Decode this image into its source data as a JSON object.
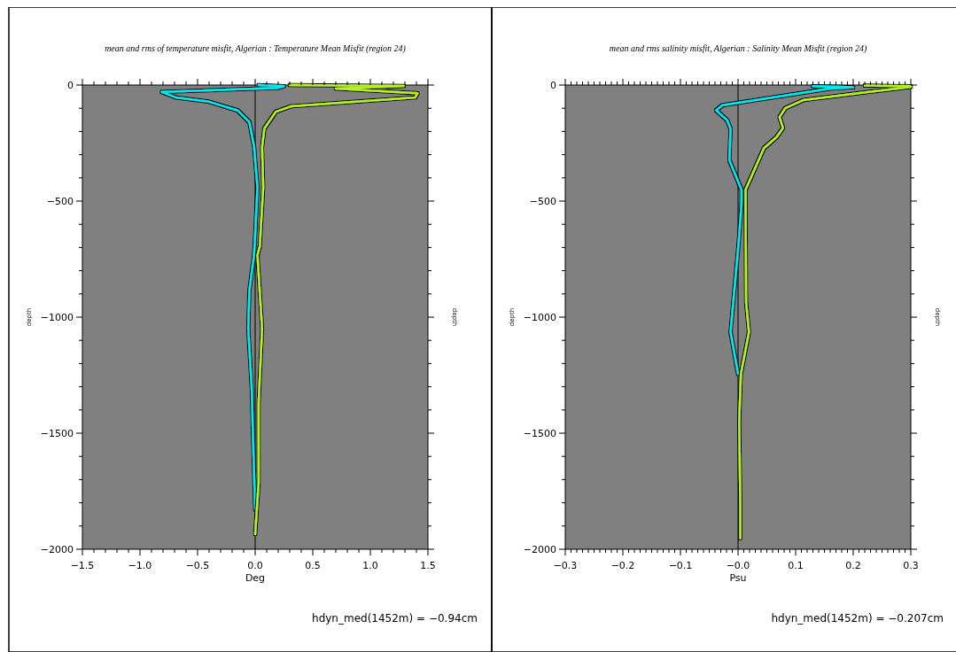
{
  "chart_data": [
    {
      "type": "line",
      "title": "mean and rms of temperature misfit, Algerian : Temperature Mean Misfit  (region 24)",
      "xlabel": "Deg",
      "ylabel": "depth",
      "y2label": "depth",
      "annotations": [
        "hdyn_med(1452m) = −0.94cm"
      ],
      "grid": false,
      "line_style": "solid",
      "xlim": [
        -1.5,
        1.5
      ],
      "ylim": [
        -2000,
        0
      ],
      "xticks": [
        {
          "value": -1.5,
          "label": "−1.5"
        },
        {
          "value": -1.4,
          "label": null
        },
        {
          "value": -1.3,
          "label": null
        },
        {
          "value": -1.2,
          "label": null
        },
        {
          "value": -1.1,
          "label": null
        },
        {
          "value": -1.0,
          "label": "−1.0"
        },
        {
          "value": -0.9,
          "label": null
        },
        {
          "value": -0.8,
          "label": null
        },
        {
          "value": -0.7,
          "label": null
        },
        {
          "value": -0.6,
          "label": null
        },
        {
          "value": -0.5,
          "label": "−0.5"
        },
        {
          "value": -0.4,
          "label": null
        },
        {
          "value": -0.3,
          "label": null
        },
        {
          "value": -0.2,
          "label": null
        },
        {
          "value": -0.1,
          "label": null
        },
        {
          "value": 0,
          "label": "0.0"
        },
        {
          "value": 0.1,
          "label": null
        },
        {
          "value": 0.2,
          "label": null
        },
        {
          "value": 0.3,
          "label": null
        },
        {
          "value": 0.4,
          "label": null
        },
        {
          "value": 0.5,
          "label": "0.5"
        },
        {
          "value": 0.6,
          "label": null
        },
        {
          "value": 0.7,
          "label": null
        },
        {
          "value": 0.8,
          "label": null
        },
        {
          "value": 0.9,
          "label": null
        },
        {
          "value": 1.0,
          "label": "1.0"
        },
        {
          "value": 1.1,
          "label": null
        },
        {
          "value": 1.2,
          "label": null
        },
        {
          "value": 1.3,
          "label": null
        },
        {
          "value": 1.4,
          "label": null
        },
        {
          "value": 1.5,
          "label": "1.5"
        }
      ],
      "yticks": [
        {
          "value": -2000,
          "label": "−2000"
        },
        {
          "value": -1900,
          "label": null
        },
        {
          "value": -1800,
          "label": null
        },
        {
          "value": -1700,
          "label": null
        },
        {
          "value": -1600,
          "label": null
        },
        {
          "value": -1500,
          "label": "−1500"
        },
        {
          "value": -1400,
          "label": null
        },
        {
          "value": -1300,
          "label": null
        },
        {
          "value": -1200,
          "label": null
        },
        {
          "value": -1100,
          "label": null
        },
        {
          "value": -1000,
          "label": "−1000"
        },
        {
          "value": -900,
          "label": null
        },
        {
          "value": -800,
          "label": null
        },
        {
          "value": -700,
          "label": null
        },
        {
          "value": -600,
          "label": null
        },
        {
          "value": -500,
          "label": "−500"
        },
        {
          "value": -400,
          "label": null
        },
        {
          "value": -300,
          "label": null
        },
        {
          "value": -200,
          "label": null
        },
        {
          "value": -100,
          "label": null
        },
        0
      ],
      "ref_lines": [
        {
          "axis": "x",
          "value": 0,
          "color": "#000000"
        }
      ],
      "series": [
        {
          "color": "#00e8f0",
          "x": [
            0.03,
            0.25,
            0.2,
            -0.81,
            -0.69,
            -0.4,
            -0.15,
            -0.05,
            -0.01,
            0.02,
            0.0,
            -0.01,
            -0.05,
            -0.06,
            -0.03,
            -0.02,
            0.0
          ],
          "values": [
            0,
            -5,
            -12,
            -30,
            -53,
            -72,
            -110,
            -160,
            -263,
            -440,
            -645,
            -733,
            -885,
            -1050,
            -1305,
            -1496,
            -1828
          ]
        },
        {
          "color": "#b4f028",
          "x": [
            0.3,
            1.29,
            0.7,
            1.41,
            1.39,
            0.31,
            0.18,
            0.08,
            0.06,
            0.07,
            0.04,
            0.02,
            0.06,
            0.03,
            0.03,
            0.0
          ],
          "values": [
            0,
            -4,
            -15,
            -35,
            -53,
            -92,
            -115,
            -187,
            -267,
            -440,
            -695,
            -733,
            -1050,
            -1370,
            -1714,
            -1935
          ]
        }
      ]
    },
    {
      "type": "line",
      "title": "mean and rms salinity misfit, Algerian : Salinity Mean Misfit (region 24)",
      "xlabel": "Psu",
      "ylabel": "depth",
      "y2label": "depth",
      "annotations": [
        "hdyn_med(1452m) = −0.207cm"
      ],
      "grid": false,
      "line_style": "solid",
      "xlim": [
        -0.3,
        0.3
      ],
      "ylim": [
        -2000,
        0
      ],
      "xticks": [
        {
          "value": -0.3,
          "label": "−0.3"
        },
        {
          "value": -0.29,
          "label": null
        },
        {
          "value": -0.28,
          "label": null
        },
        {
          "value": -0.27,
          "label": null
        },
        {
          "value": -0.26,
          "label": null
        },
        {
          "value": -0.25,
          "label": null
        },
        {
          "value": -0.24,
          "label": null
        },
        {
          "value": -0.23,
          "label": null
        },
        {
          "value": -0.22,
          "label": null
        },
        {
          "value": -0.21,
          "label": null
        },
        {
          "value": -0.2,
          "label": "−0.2"
        },
        {
          "value": -0.19,
          "label": null
        },
        {
          "value": -0.18,
          "label": null
        },
        {
          "value": -0.17,
          "label": null
        },
        {
          "value": -0.16,
          "label": null
        },
        {
          "value": -0.15,
          "label": null
        },
        {
          "value": -0.14,
          "label": null
        },
        {
          "value": -0.13,
          "label": null
        },
        {
          "value": -0.12,
          "label": null
        },
        {
          "value": -0.11,
          "label": null
        },
        {
          "value": -0.1,
          "label": "−0.1"
        },
        {
          "value": -0.09,
          "label": null
        },
        {
          "value": -0.08,
          "label": null
        },
        {
          "value": -0.07,
          "label": null
        },
        {
          "value": -0.06,
          "label": null
        },
        {
          "value": -0.05,
          "label": null
        },
        {
          "value": -0.04,
          "label": null
        },
        {
          "value": -0.03,
          "label": null
        },
        {
          "value": -0.02,
          "label": null
        },
        {
          "value": -0.01,
          "label": null
        },
        {
          "value": 0,
          "label": "−0.0"
        },
        {
          "value": 0.01,
          "label": null
        },
        {
          "value": 0.02,
          "label": null
        },
        {
          "value": 0.03,
          "label": null
        },
        {
          "value": 0.04,
          "label": null
        },
        {
          "value": 0.05,
          "label": null
        },
        {
          "value": 0.06,
          "label": null
        },
        {
          "value": 0.07,
          "label": null
        },
        {
          "value": 0.08,
          "label": null
        },
        {
          "value": 0.09,
          "label": null
        },
        {
          "value": 0.1,
          "label": "0.1"
        },
        {
          "value": 0.11,
          "label": null
        },
        {
          "value": 0.12,
          "label": null
        },
        {
          "value": 0.13,
          "label": null
        },
        {
          "value": 0.14,
          "label": null
        },
        {
          "value": 0.15,
          "label": null
        },
        {
          "value": 0.16,
          "label": null
        },
        {
          "value": 0.17,
          "label": null
        },
        {
          "value": 0.18,
          "label": null
        },
        {
          "value": 0.19,
          "label": null
        },
        {
          "value": 0.2,
          "label": "0.2"
        },
        {
          "value": 0.21,
          "label": null
        },
        {
          "value": 0.22,
          "label": null
        },
        {
          "value": 0.23,
          "label": null
        },
        {
          "value": 0.24,
          "label": null
        },
        {
          "value": 0.25,
          "label": null
        },
        {
          "value": 0.26,
          "label": null
        },
        {
          "value": 0.27,
          "label": null
        },
        {
          "value": 0.28,
          "label": null
        },
        {
          "value": 0.29,
          "label": null
        },
        {
          "value": 0.3,
          "label": "0.3"
        }
      ],
      "yticks": [
        {
          "value": -2000,
          "label": "−2000"
        },
        {
          "value": -1900,
          "label": null
        },
        {
          "value": -1800,
          "label": null
        },
        {
          "value": -1700,
          "label": null
        },
        {
          "value": -1600,
          "label": null
        },
        {
          "value": -1500,
          "label": "−1500"
        },
        {
          "value": -1400,
          "label": null
        },
        {
          "value": -1300,
          "label": null
        },
        {
          "value": -1200,
          "label": null
        },
        {
          "value": -1100,
          "label": null
        },
        {
          "value": -1000,
          "label": "−1000"
        },
        {
          "value": -900,
          "label": null
        },
        {
          "value": -800,
          "label": null
        },
        {
          "value": -700,
          "label": null
        },
        {
          "value": -600,
          "label": null
        },
        {
          "value": -500,
          "label": "−500"
        },
        {
          "value": -400,
          "label": null
        },
        {
          "value": -300,
          "label": null
        },
        {
          "value": -200,
          "label": null
        },
        {
          "value": -100,
          "label": null
        },
        0
      ],
      "ref_lines": [
        {
          "axis": "x",
          "value": 0,
          "color": "#000000"
        }
      ],
      "series": [
        {
          "color": "#00e8f0",
          "x": [
            0.13,
            0.2,
            0.16,
            -0.027,
            -0.038,
            -0.019,
            -0.013,
            -0.015,
            0.006,
            0.006,
            0.001,
            -0.013,
            0.0
          ],
          "values": [
            -5,
            -10,
            -15,
            -87,
            -109,
            -151,
            -189,
            -324,
            -451,
            -515,
            -681,
            -1064,
            -1244
          ]
        },
        {
          "color": "#b4f028",
          "x": [
            0.22,
            0.3,
            0.3,
            0.227,
            0.113,
            0.082,
            0.072,
            0.078,
            0.067,
            0.045,
            0.013,
            0.014,
            0.019,
            0.005,
            0.002,
            0.004,
            0.004
          ],
          "values": [
            -2,
            -5,
            -8,
            -30,
            -65,
            -100,
            -138,
            -185,
            -224,
            -272,
            -451,
            -937,
            -1064,
            -1244,
            -1448,
            -1818,
            -1952
          ]
        }
      ]
    }
  ]
}
